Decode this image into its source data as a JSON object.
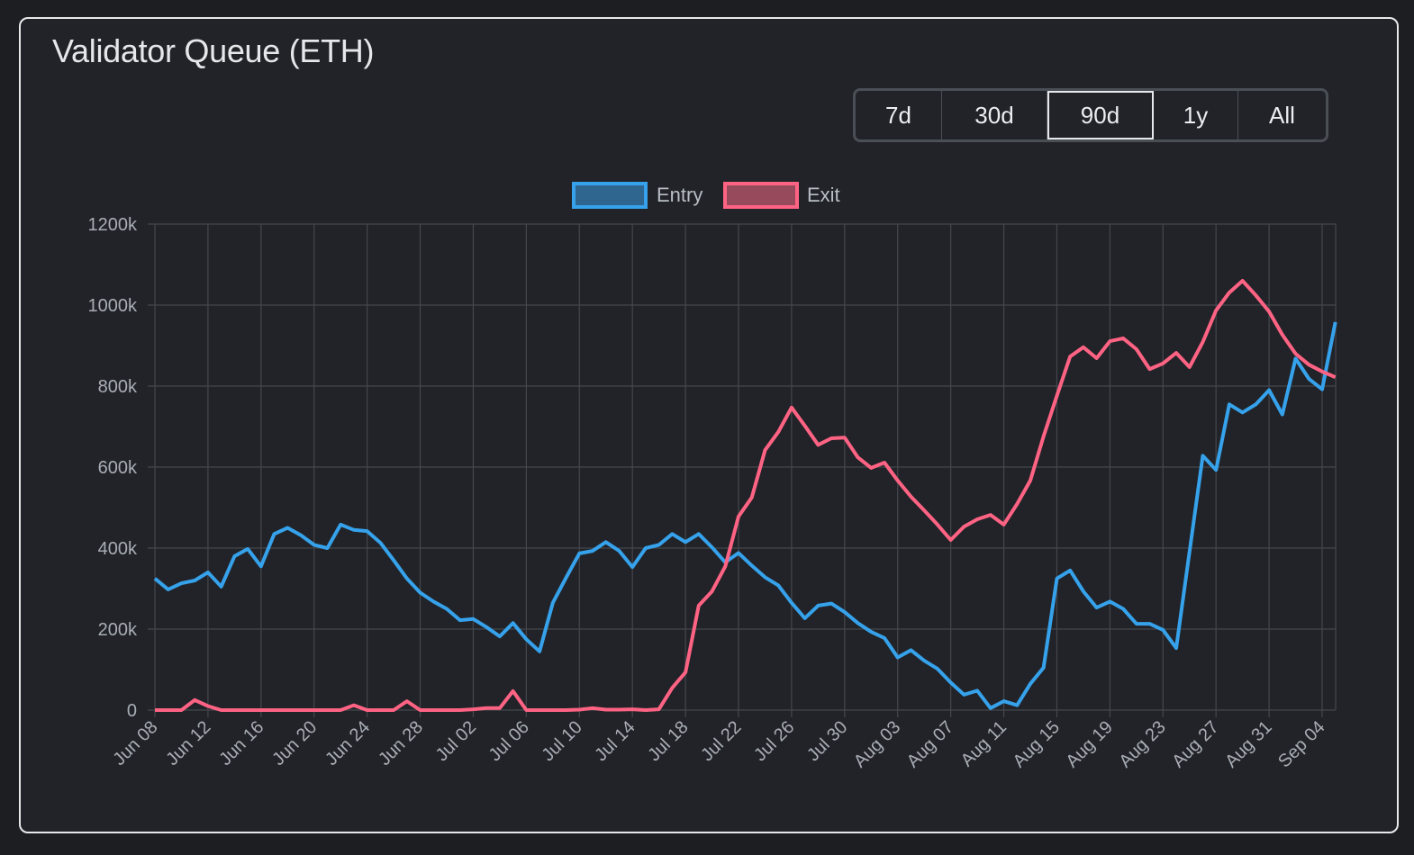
{
  "title": "Validator Queue (ETH)",
  "range_buttons": [
    {
      "label": "7d",
      "active": false
    },
    {
      "label": "30d",
      "active": false
    },
    {
      "label": "90d",
      "active": true
    },
    {
      "label": "1y",
      "active": false
    },
    {
      "label": "All",
      "active": false
    }
  ],
  "chart_data": {
    "type": "line",
    "title": "",
    "xlabel": "",
    "ylabel": "",
    "ylim": [
      0,
      1200
    ],
    "y_ticks": [
      "0",
      "200k",
      "400k",
      "600k",
      "800k",
      "1000k",
      "1200k"
    ],
    "y_tick_values": [
      0,
      200,
      400,
      600,
      800,
      1000,
      1200
    ],
    "y_unit": "k",
    "grid": true,
    "legend": "top-center",
    "x_tick_every": 4,
    "x": [
      "Jun 08",
      "Jun 09",
      "Jun 10",
      "Jun 11",
      "Jun 12",
      "Jun 13",
      "Jun 14",
      "Jun 15",
      "Jun 16",
      "Jun 17",
      "Jun 18",
      "Jun 19",
      "Jun 20",
      "Jun 21",
      "Jun 22",
      "Jun 23",
      "Jun 24",
      "Jun 25",
      "Jun 26",
      "Jun 27",
      "Jun 28",
      "Jun 29",
      "Jun 30",
      "Jul 01",
      "Jul 02",
      "Jul 03",
      "Jul 04",
      "Jul 05",
      "Jul 06",
      "Jul 07",
      "Jul 08",
      "Jul 09",
      "Jul 10",
      "Jul 11",
      "Jul 12",
      "Jul 13",
      "Jul 14",
      "Jul 15",
      "Jul 16",
      "Jul 17",
      "Jul 18",
      "Jul 19",
      "Jul 20",
      "Jul 21",
      "Jul 22",
      "Jul 23",
      "Jul 24",
      "Jul 25",
      "Jul 26",
      "Jul 27",
      "Jul 28",
      "Jul 29",
      "Jul 30",
      "Jul 31",
      "Aug 01",
      "Aug 02",
      "Aug 03",
      "Aug 04",
      "Aug 05",
      "Aug 06",
      "Aug 07",
      "Aug 08",
      "Aug 09",
      "Aug 10",
      "Aug 11",
      "Aug 12",
      "Aug 13",
      "Aug 14",
      "Aug 15",
      "Aug 16",
      "Aug 17",
      "Aug 18",
      "Aug 19",
      "Aug 20",
      "Aug 21",
      "Aug 22",
      "Aug 23",
      "Aug 24",
      "Aug 25",
      "Aug 26",
      "Aug 27",
      "Aug 28",
      "Aug 29",
      "Aug 30",
      "Aug 31",
      "Sep 01",
      "Sep 02",
      "Sep 03",
      "Sep 04",
      "Sep 05"
    ],
    "series": [
      {
        "name": "Entry",
        "color": "#36a2eb",
        "fill": "#2f6690",
        "values": [
          325,
          298,
          313,
          320,
          340,
          305,
          380,
          398,
          355,
          435,
          450,
          432,
          408,
          400,
          458,
          445,
          442,
          413,
          370,
          325,
          290,
          268,
          250,
          222,
          225,
          205,
          182,
          215,
          175,
          145,
          265,
          327,
          387,
          393,
          415,
          393,
          353,
          400,
          408,
          435,
          415,
          435,
          402,
          365,
          388,
          357,
          328,
          308,
          265,
          227,
          258,
          263,
          242,
          215,
          193,
          178,
          130,
          148,
          122,
          102,
          68,
          38,
          48,
          5,
          22,
          12,
          65,
          105,
          325,
          345,
          293,
          253,
          268,
          250,
          213,
          213,
          198,
          153,
          390,
          628,
          593,
          755,
          735,
          755,
          790,
          730,
          868,
          818,
          792,
          958
        ]
      },
      {
        "name": "Exit",
        "color": "#ff6384",
        "fill": "#964a5c",
        "values": [
          0,
          0,
          0,
          25,
          10,
          0,
          0,
          0,
          0,
          0,
          0,
          0,
          0,
          0,
          0,
          12,
          0,
          0,
          0,
          22,
          0,
          0,
          0,
          0,
          2,
          5,
          5,
          47,
          0,
          0,
          0,
          0,
          1,
          5,
          1,
          1,
          2,
          0,
          2,
          55,
          93,
          258,
          293,
          355,
          478,
          525,
          642,
          687,
          747,
          702,
          655,
          671,
          673,
          624,
          598,
          611,
          567,
          527,
          493,
          458,
          420,
          453,
          471,
          482,
          458,
          509,
          567,
          676,
          776,
          873,
          896,
          869,
          911,
          918,
          891,
          842,
          856,
          882,
          847,
          909,
          987,
          1031,
          1060,
          1024,
          984,
          927,
          880,
          853,
          836,
          822
        ]
      }
    ]
  }
}
